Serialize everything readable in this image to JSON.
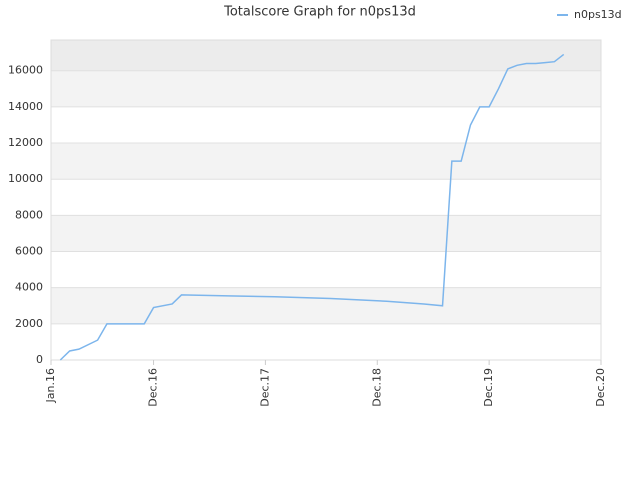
{
  "chart_data": {
    "type": "line",
    "title": "Totalscore Graph for n0ps13d",
    "x": [
      "2016-02",
      "2016-03",
      "2016-04",
      "2016-06",
      "2016-07",
      "2016-11",
      "2016-12",
      "2017-02",
      "2017-03",
      "2017-08",
      "2018-01",
      "2018-07",
      "2019-01",
      "2019-05",
      "2019-07",
      "2019-08",
      "2019-09",
      "2019-10",
      "2019-11",
      "2019-12",
      "2020-01",
      "2020-02",
      "2020-03",
      "2020-04",
      "2020-05",
      "2020-06",
      "2020-07",
      "2020-08"
    ],
    "series": [
      {
        "name": "n0ps13d",
        "color": "#7cb5ec",
        "values": [
          0,
          500,
          600,
          1100,
          2000,
          2000,
          2900,
          3100,
          3600,
          3550,
          3500,
          3400,
          3250,
          3100,
          3000,
          11000,
          11000,
          13000,
          14000,
          14000,
          15000,
          16100,
          16300,
          16400,
          16400,
          16450,
          16500,
          16900
        ]
      }
    ],
    "xlim": [
      "2016-01",
      "2020-12"
    ],
    "xticks": [
      {
        "value": "2016-01",
        "label": "Jan.16"
      },
      {
        "value": "2016-12",
        "label": "Dec.16"
      },
      {
        "value": "2017-12",
        "label": "Dec.17"
      },
      {
        "value": "2018-12",
        "label": "Dec.18"
      },
      {
        "value": "2019-12",
        "label": "Dec.19"
      },
      {
        "value": "2020-12",
        "label": "Dec.20"
      }
    ],
    "ylim": [
      0,
      17700
    ],
    "yticks": [
      0,
      2000,
      4000,
      6000,
      8000,
      10000,
      12000,
      14000,
      16000
    ],
    "grid": true,
    "legend": "top-right"
  }
}
